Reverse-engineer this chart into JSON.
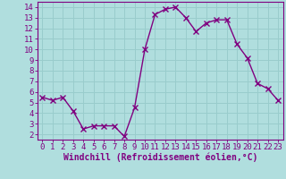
{
  "x": [
    0,
    1,
    2,
    3,
    4,
    5,
    6,
    7,
    8,
    9,
    10,
    11,
    12,
    13,
    14,
    15,
    16,
    17,
    18,
    19,
    20,
    21,
    22,
    23
  ],
  "y": [
    5.5,
    5.2,
    5.5,
    4.2,
    2.5,
    2.8,
    2.8,
    2.8,
    1.8,
    4.5,
    10.0,
    13.3,
    13.8,
    14.0,
    13.0,
    11.7,
    12.5,
    12.8,
    12.8,
    10.5,
    9.2,
    6.8,
    6.3,
    5.2
  ],
  "line_color": "#800080",
  "marker": "x",
  "bg_color": "#b0dede",
  "grid_color": "#99cccc",
  "xlabel": "Windchill (Refroidissement éolien,°C)",
  "ylim": [
    1.5,
    14.5
  ],
  "xlim": [
    -0.5,
    23.5
  ],
  "yticks": [
    2,
    3,
    4,
    5,
    6,
    7,
    8,
    9,
    10,
    11,
    12,
    13,
    14
  ],
  "xticks": [
    0,
    1,
    2,
    3,
    4,
    5,
    6,
    7,
    8,
    9,
    10,
    11,
    12,
    13,
    14,
    15,
    16,
    17,
    18,
    19,
    20,
    21,
    22,
    23
  ],
  "xlabel_fontsize": 7,
  "tick_fontsize": 6.5,
  "line_width": 1.0,
  "marker_size": 4
}
